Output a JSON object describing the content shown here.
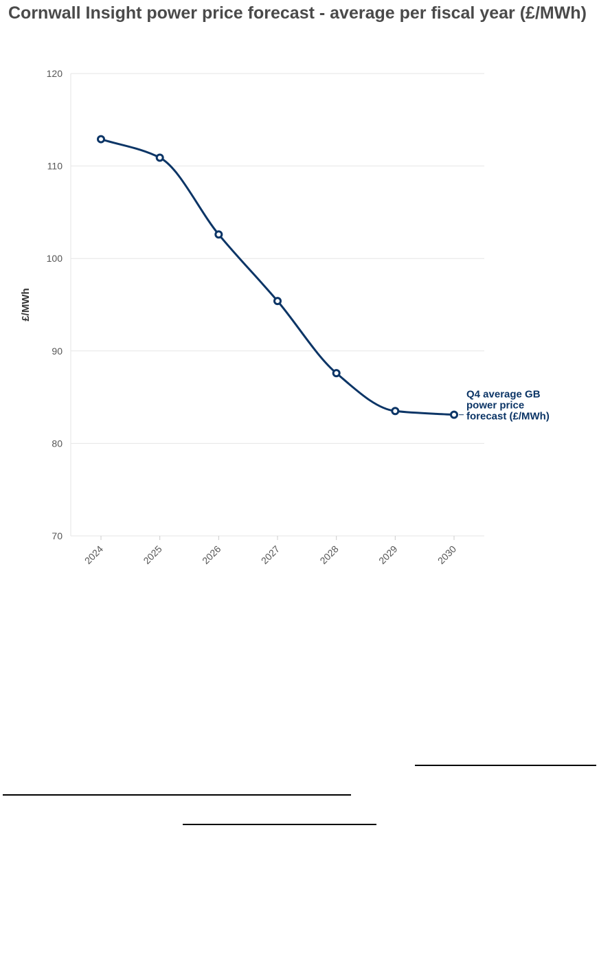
{
  "chart_data": {
    "type": "line",
    "title": "Cornwall Insight power price forecast - average per fiscal year (£/MWh)",
    "ylabel": "£/MWh",
    "xlabel": "",
    "ylim": [
      70,
      120
    ],
    "yticks": [
      70,
      80,
      90,
      100,
      110,
      120
    ],
    "x": [
      "2024",
      "2025",
      "2026",
      "2027",
      "2028",
      "2029",
      "2030"
    ],
    "series": [
      {
        "name": "Q4 average GB power price forecast (£/MWh)",
        "name_lines": [
          "Q4 average GB",
          "power price",
          "forecast (£/MWh)"
        ],
        "values": [
          112.9,
          110.9,
          102.6,
          95.4,
          87.6,
          83.5,
          83.1
        ],
        "color": "#0c3566"
      }
    ],
    "grid": true,
    "legend": "inline-end-label"
  }
}
